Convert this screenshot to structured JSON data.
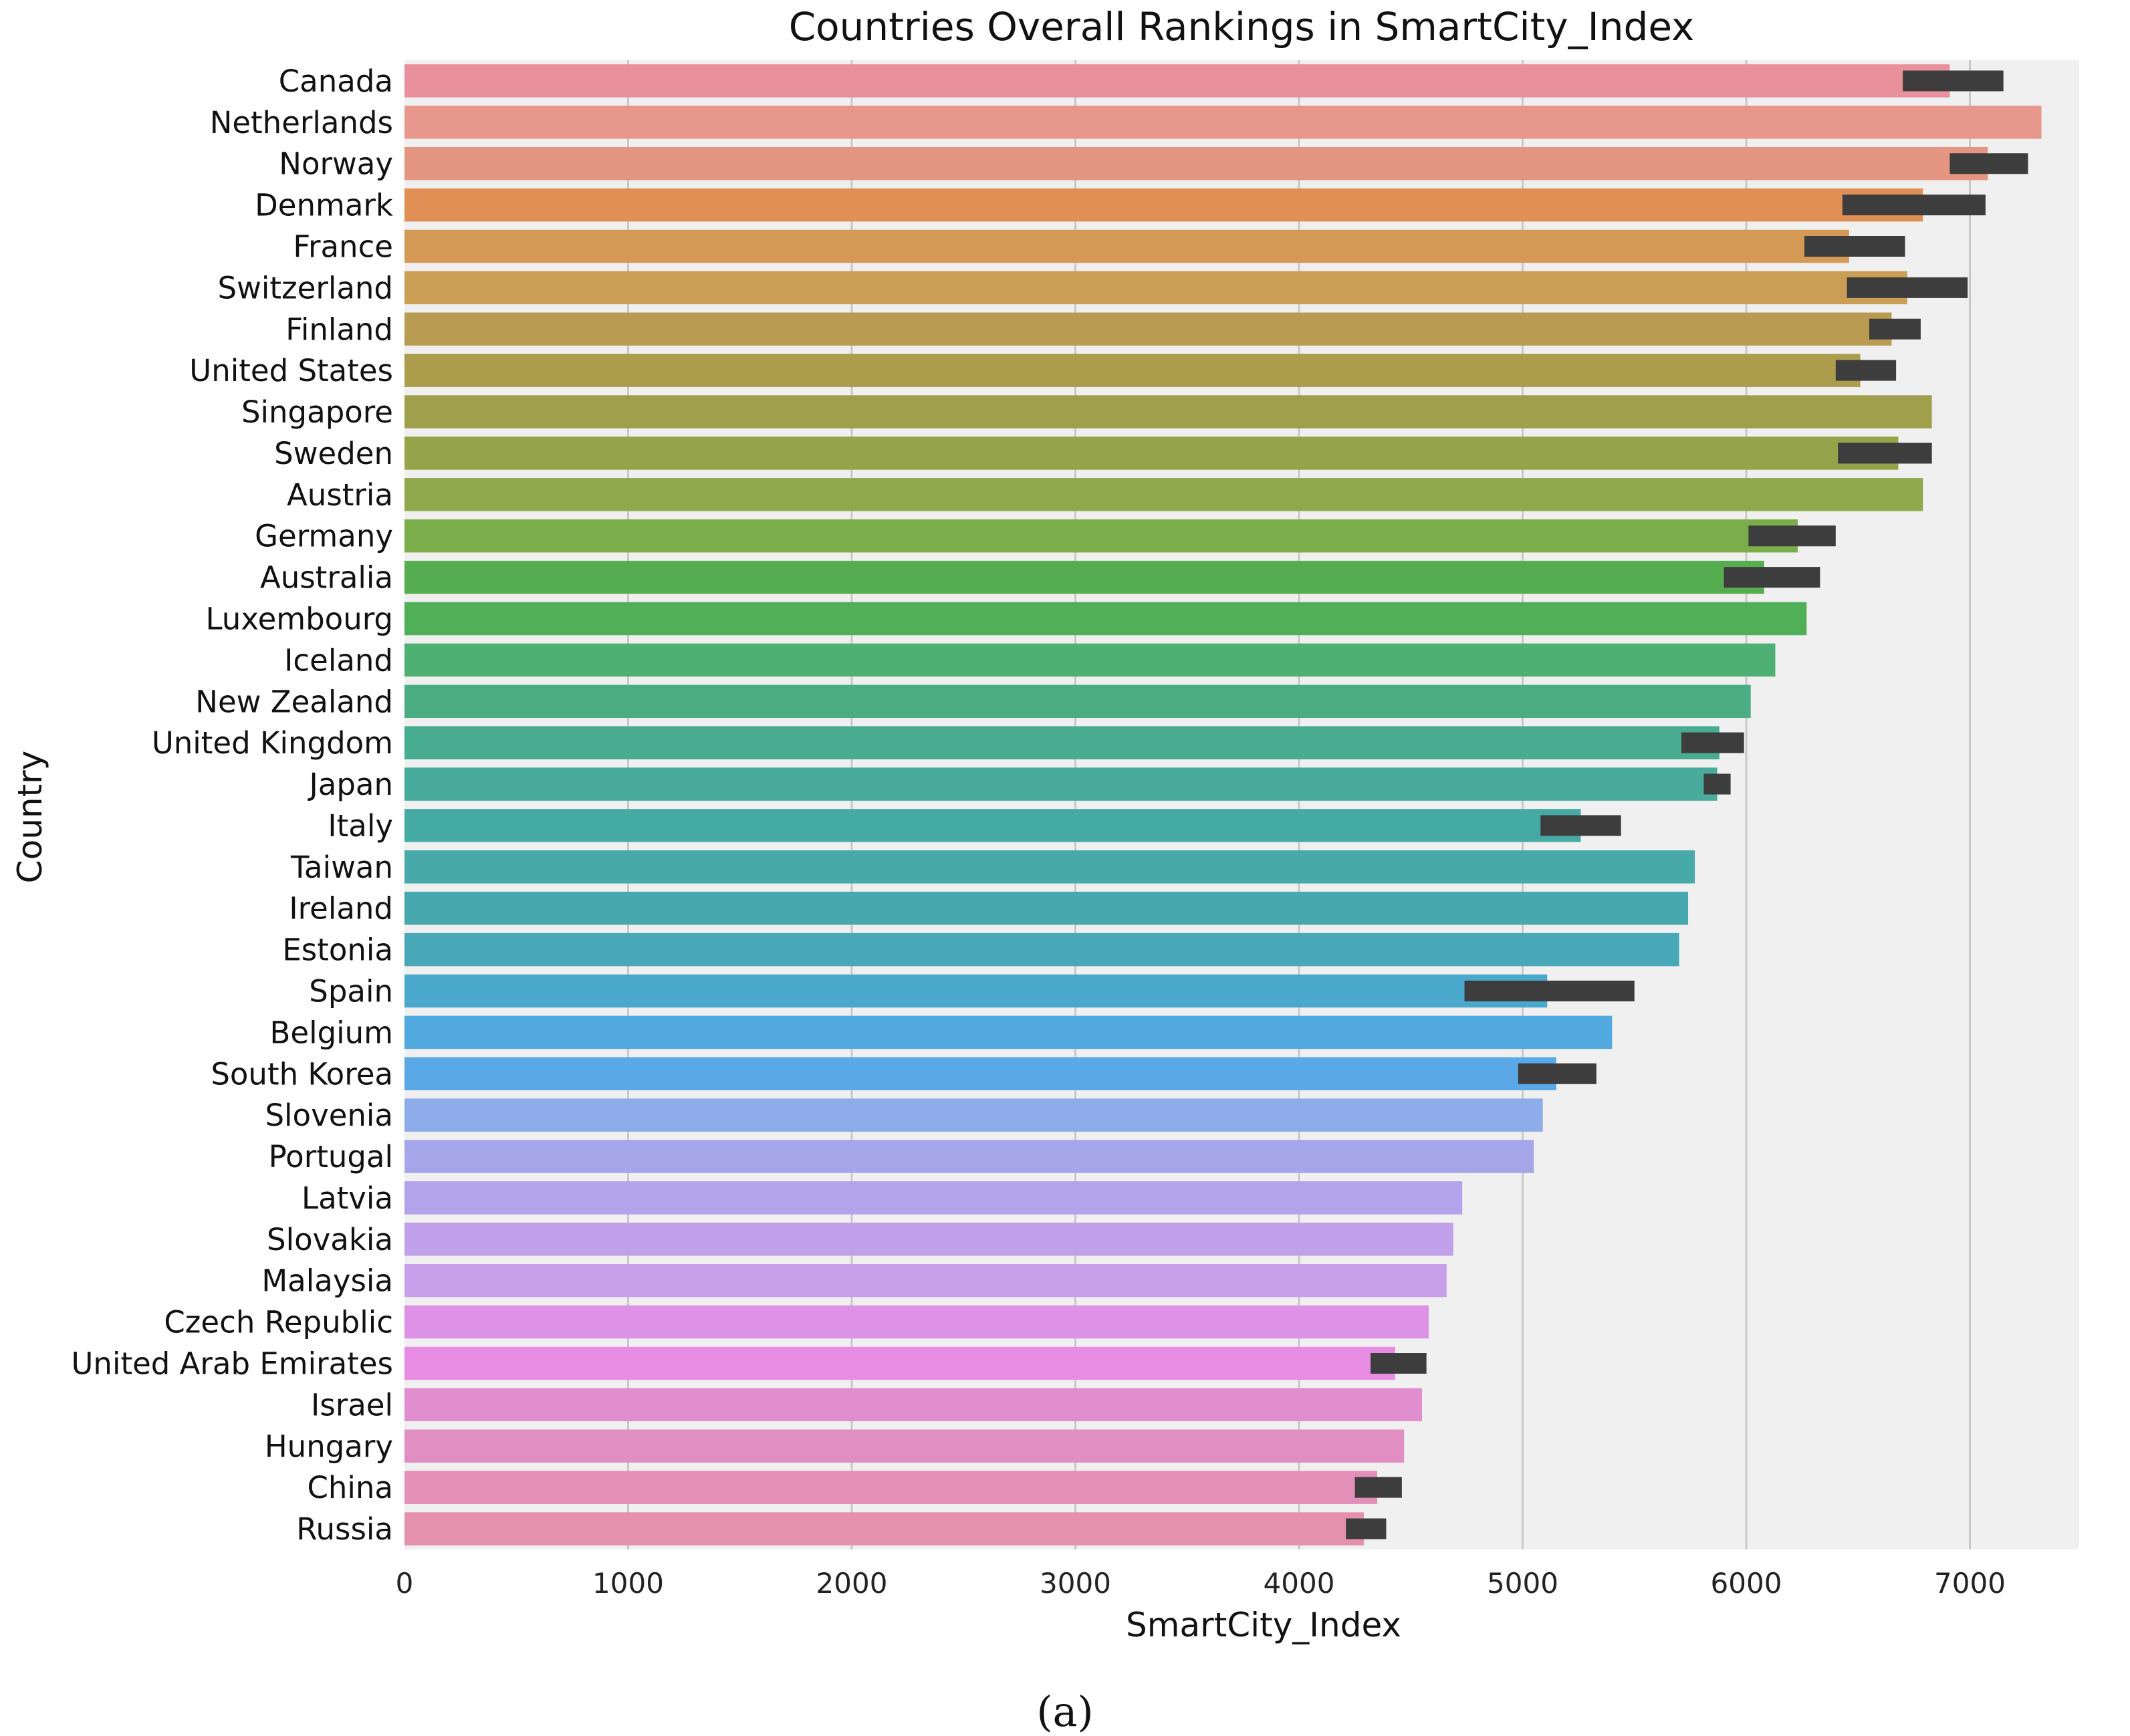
{
  "chart_data": {
    "type": "bar",
    "orientation": "horizontal",
    "title": "Countries Overall Rankings in SmartCity_Index",
    "xlabel": "SmartCity_Index",
    "ylabel": "Country",
    "xlim": [
      0,
      7550
    ],
    "xticks": [
      0,
      1000,
      2000,
      3000,
      4000,
      5000,
      6000,
      7000
    ],
    "grid": "vertical",
    "categories": [
      "Canada",
      "Netherlands",
      "Norway",
      "Denmark",
      "France",
      "Switzerland",
      "Finland",
      "United States",
      "Singapore",
      "Sweden",
      "Austria",
      "Germany",
      "Australia",
      "Luxembourg",
      "Iceland",
      "New Zealand",
      "United Kingdom",
      "Japan",
      "Italy",
      "Taiwan",
      "Ireland",
      "Estonia",
      "Spain",
      "Belgium",
      "South Korea",
      "Slovenia",
      "Portugal",
      "Latvia",
      "Slovakia",
      "Malaysia",
      "Czech Republic",
      "United Arab Emirates",
      "Israel",
      "Hungary",
      "China",
      "Russia"
    ],
    "values": [
      6910,
      7320,
      7080,
      6790,
      6460,
      6720,
      6650,
      6510,
      6830,
      6680,
      6790,
      6230,
      6080,
      6270,
      6130,
      6020,
      5880,
      5870,
      5260,
      5770,
      5740,
      5700,
      5110,
      5400,
      5150,
      5090,
      5050,
      4730,
      4690,
      4660,
      4580,
      4430,
      4550,
      4470,
      4350,
      4290
    ],
    "error_bars": [
      [
        6700,
        7150
      ],
      null,
      [
        6910,
        7260
      ],
      [
        6430,
        7070
      ],
      [
        6260,
        6710
      ],
      [
        6450,
        6990
      ],
      [
        6550,
        6780
      ],
      [
        6400,
        6670
      ],
      null,
      [
        6410,
        6830
      ],
      null,
      [
        6010,
        6400
      ],
      [
        5900,
        6330
      ],
      null,
      null,
      null,
      [
        5710,
        5990
      ],
      [
        5810,
        5930
      ],
      [
        5080,
        5440
      ],
      null,
      null,
      null,
      [
        4740,
        5500
      ],
      null,
      [
        4980,
        5330
      ],
      null,
      null,
      null,
      null,
      null,
      null,
      [
        4320,
        4570
      ],
      null,
      null,
      [
        4250,
        4460
      ],
      [
        4210,
        4390
      ]
    ],
    "colors": [
      "#e8909b",
      "#e8978d",
      "#e49683",
      "#e08f55",
      "#d49a55",
      "#cb9e56",
      "#b99c51",
      "#ab9d4c",
      "#a09f4c",
      "#95a34b",
      "#8fa84b",
      "#7bae4b",
      "#55ad4f",
      "#4fb058",
      "#4fb074",
      "#4aae82",
      "#48ac91",
      "#48ab9b",
      "#46aaa4",
      "#47aaa9",
      "#47a9ae",
      "#48a8b8",
      "#49a8cc",
      "#52a9df",
      "#5aa8e6",
      "#8eabea",
      "#a5a5ea",
      "#b2a3eb",
      "#c0a1ea",
      "#c8a0ea",
      "#dd92e6",
      "#e88de3",
      "#e18ecf",
      "#e18fc2",
      "#e48fb7",
      "#e491ad"
    ],
    "caption": "(a)"
  }
}
